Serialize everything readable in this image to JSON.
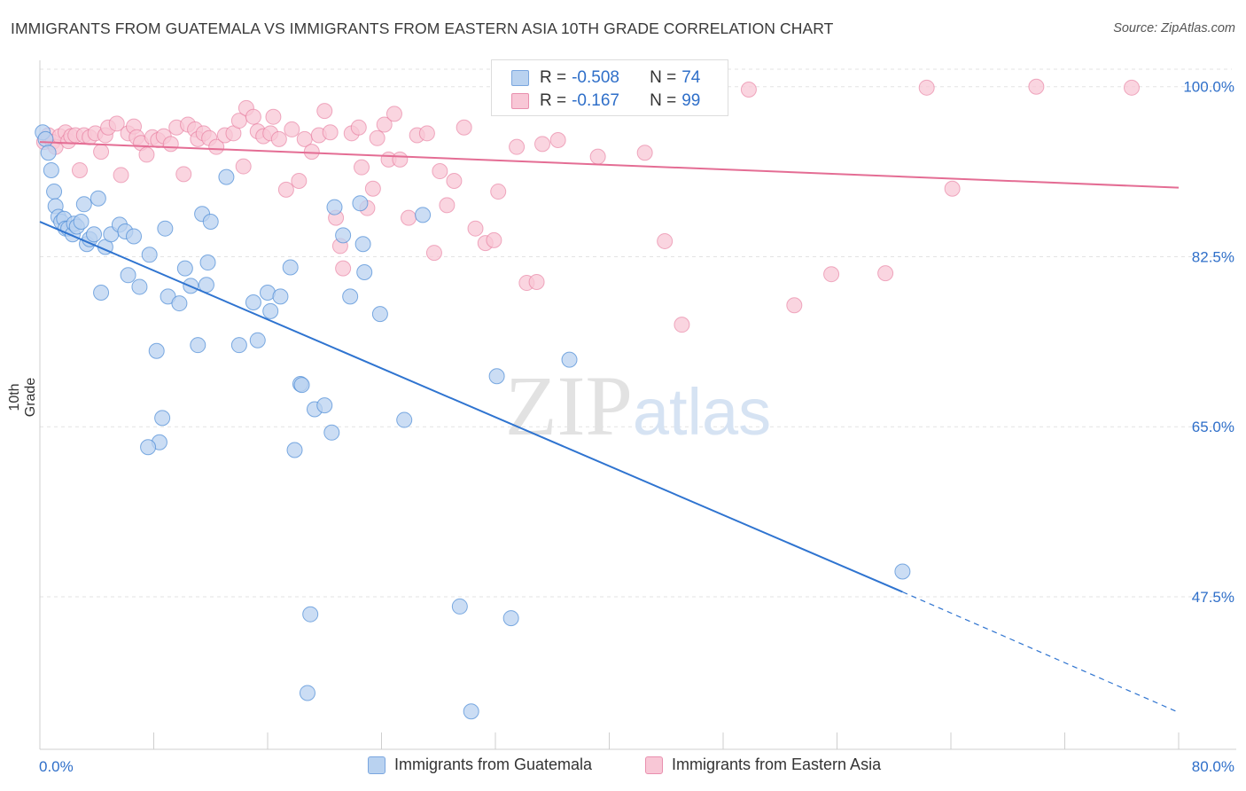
{
  "title": "IMMIGRANTS FROM GUATEMALA VS IMMIGRANTS FROM EASTERN ASIA 10TH GRADE CORRELATION CHART",
  "source": "Source: ZipAtlas.com",
  "watermark": "ZIPatlas",
  "legend_top": {
    "rows": [
      {
        "r_label": "R =",
        "r_value": "-0.508",
        "n_label": "N =",
        "n_value": "74"
      },
      {
        "r_label": "R =",
        "r_value": "-0.167",
        "n_label": "N =",
        "n_value": "99"
      }
    ]
  },
  "legend_bottom": [
    "Immigrants from Guatemala",
    "Immigrants from Eastern Asia"
  ],
  "colors": {
    "blue": "#4a8ad6",
    "blue_fill": "#b9d2f0",
    "pink": "#e46d94",
    "pink_fill": "#f8c7d6",
    "grid": "#e3e3e3",
    "tick_label": "#2f6fc9"
  },
  "chart_data": {
    "type": "scatter",
    "title": "IMMIGRANTS FROM GUATEMALA VS IMMIGRANTS FROM EASTERN ASIA 10TH GRADE CORRELATION CHART",
    "xlabel": "",
    "ylabel": "10th Grade",
    "xlim": [
      0,
      80
    ],
    "ylim": [
      31.8,
      101.8
    ],
    "x_tick_labels": [
      "0.0%",
      "80.0%"
    ],
    "y_ticks": [
      100.0,
      82.5,
      65.0,
      47.5
    ],
    "y_tick_labels": [
      "100.0%",
      "82.5%",
      "65.0%",
      "47.5%"
    ],
    "grid": true,
    "legend_position": "top-center",
    "series": [
      {
        "name": "Immigrants from Guatemala",
        "color": "#4a8ad6",
        "points": [
          [
            0.2,
            95.3
          ],
          [
            0.4,
            94.6
          ],
          [
            0.6,
            93.2
          ],
          [
            0.8,
            91.4
          ],
          [
            1.0,
            89.2
          ],
          [
            1.1,
            87.7
          ],
          [
            1.3,
            86.6
          ],
          [
            1.5,
            86.1
          ],
          [
            1.7,
            86.4
          ],
          [
            1.8,
            85.4
          ],
          [
            2.0,
            85.4
          ],
          [
            2.3,
            84.8
          ],
          [
            2.4,
            85.9
          ],
          [
            2.6,
            85.6
          ],
          [
            2.9,
            86.1
          ],
          [
            3.1,
            87.9
          ],
          [
            3.3,
            83.8
          ],
          [
            3.5,
            84.3
          ],
          [
            3.8,
            84.8
          ],
          [
            4.1,
            88.5
          ],
          [
            4.6,
            83.5
          ],
          [
            5.0,
            84.8
          ],
          [
            5.6,
            85.8
          ],
          [
            6.0,
            85.1
          ],
          [
            6.6,
            84.6
          ],
          [
            4.3,
            78.8
          ],
          [
            6.2,
            80.6
          ],
          [
            7.0,
            79.4
          ],
          [
            7.7,
            82.7
          ],
          [
            8.8,
            85.4
          ],
          [
            9.0,
            78.4
          ],
          [
            8.2,
            72.8
          ],
          [
            8.6,
            65.9
          ],
          [
            8.4,
            63.4
          ],
          [
            7.6,
            62.9
          ],
          [
            9.8,
            77.7
          ],
          [
            10.2,
            81.3
          ],
          [
            10.6,
            79.5
          ],
          [
            11.1,
            73.4
          ],
          [
            11.4,
            86.9
          ],
          [
            12.0,
            86.1
          ],
          [
            11.8,
            81.9
          ],
          [
            11.7,
            79.6
          ],
          [
            13.1,
            90.7
          ],
          [
            14.0,
            73.4
          ],
          [
            15.0,
            77.8
          ],
          [
            15.3,
            73.9
          ],
          [
            16.0,
            78.8
          ],
          [
            16.2,
            76.9
          ],
          [
            16.9,
            78.4
          ],
          [
            17.6,
            81.4
          ],
          [
            18.3,
            69.4
          ],
          [
            18.4,
            69.3
          ],
          [
            17.9,
            62.6
          ],
          [
            19.3,
            66.8
          ],
          [
            20.0,
            67.2
          ],
          [
            20.5,
            64.4
          ],
          [
            19.0,
            45.7
          ],
          [
            18.8,
            37.6
          ],
          [
            20.7,
            87.6
          ],
          [
            21.3,
            84.7
          ],
          [
            21.8,
            78.4
          ],
          [
            22.7,
            83.8
          ],
          [
            22.5,
            88.0
          ],
          [
            22.8,
            80.9
          ],
          [
            23.9,
            76.6
          ],
          [
            25.6,
            65.7
          ],
          [
            26.9,
            86.8
          ],
          [
            29.5,
            46.5
          ],
          [
            30.3,
            35.7
          ],
          [
            32.1,
            70.2
          ],
          [
            33.1,
            45.3
          ],
          [
            37.2,
            71.9
          ],
          [
            60.6,
            50.1
          ]
        ],
        "trend": {
          "x0": 0,
          "y0": 86.1,
          "x1": 60.6,
          "y1": 48.0,
          "dash_to_x": 80,
          "dash_to_y": 35.6
        }
      },
      {
        "name": "Immigrants from Eastern Asia",
        "color": "#e46d94",
        "points": [
          [
            0.3,
            94.3
          ],
          [
            0.6,
            95.0
          ],
          [
            0.9,
            94.3
          ],
          [
            1.1,
            93.8
          ],
          [
            1.4,
            94.9
          ],
          [
            1.8,
            95.3
          ],
          [
            2.0,
            94.4
          ],
          [
            2.2,
            94.9
          ],
          [
            2.5,
            95.0
          ],
          [
            2.8,
            91.4
          ],
          [
            3.1,
            95.0
          ],
          [
            3.5,
            94.8
          ],
          [
            3.9,
            95.2
          ],
          [
            4.3,
            93.3
          ],
          [
            4.6,
            95.0
          ],
          [
            4.8,
            95.8
          ],
          [
            5.4,
            96.2
          ],
          [
            5.7,
            90.9
          ],
          [
            6.2,
            95.2
          ],
          [
            6.6,
            95.9
          ],
          [
            6.8,
            94.8
          ],
          [
            7.1,
            94.2
          ],
          [
            7.5,
            93.0
          ],
          [
            7.9,
            94.8
          ],
          [
            8.3,
            94.5
          ],
          [
            8.7,
            94.9
          ],
          [
            9.2,
            94.1
          ],
          [
            9.6,
            95.8
          ],
          [
            10.1,
            91.0
          ],
          [
            10.4,
            96.1
          ],
          [
            10.9,
            95.6
          ],
          [
            11.1,
            94.6
          ],
          [
            11.5,
            95.2
          ],
          [
            11.9,
            94.7
          ],
          [
            12.4,
            93.8
          ],
          [
            13.0,
            95.0
          ],
          [
            13.6,
            95.2
          ],
          [
            14.0,
            96.5
          ],
          [
            14.3,
            91.8
          ],
          [
            14.5,
            97.8
          ],
          [
            15.0,
            96.9
          ],
          [
            15.3,
            95.4
          ],
          [
            15.7,
            94.9
          ],
          [
            16.2,
            95.2
          ],
          [
            16.4,
            96.9
          ],
          [
            16.8,
            94.6
          ],
          [
            17.3,
            89.4
          ],
          [
            17.7,
            95.6
          ],
          [
            18.2,
            90.3
          ],
          [
            18.6,
            94.6
          ],
          [
            19.1,
            93.3
          ],
          [
            19.6,
            95.0
          ],
          [
            20.0,
            97.5
          ],
          [
            20.4,
            95.3
          ],
          [
            20.8,
            86.5
          ],
          [
            21.1,
            83.6
          ],
          [
            21.3,
            81.3
          ],
          [
            21.9,
            95.2
          ],
          [
            22.4,
            95.8
          ],
          [
            22.6,
            91.7
          ],
          [
            23.0,
            87.5
          ],
          [
            23.4,
            89.5
          ],
          [
            23.7,
            94.7
          ],
          [
            24.2,
            96.1
          ],
          [
            24.5,
            92.5
          ],
          [
            24.9,
            97.2
          ],
          [
            25.3,
            92.5
          ],
          [
            25.9,
            86.5
          ],
          [
            26.5,
            95.0
          ],
          [
            27.2,
            95.2
          ],
          [
            27.7,
            82.9
          ],
          [
            28.1,
            91.3
          ],
          [
            28.6,
            87.8
          ],
          [
            29.1,
            90.3
          ],
          [
            29.8,
            95.8
          ],
          [
            30.6,
            85.4
          ],
          [
            31.3,
            83.9
          ],
          [
            31.9,
            84.2
          ],
          [
            32.2,
            89.2
          ],
          [
            33.5,
            93.8
          ],
          [
            34.2,
            79.8
          ],
          [
            34.9,
            79.9
          ],
          [
            35.3,
            94.1
          ],
          [
            36.4,
            94.5
          ],
          [
            37.6,
            99.9
          ],
          [
            39.2,
            92.8
          ],
          [
            41.0,
            99.9
          ],
          [
            42.5,
            93.2
          ],
          [
            43.9,
            84.1
          ],
          [
            45.1,
            75.5
          ],
          [
            46.7,
            100.0
          ],
          [
            49.8,
            99.7
          ],
          [
            53.0,
            77.5
          ],
          [
            55.6,
            80.7
          ],
          [
            59.4,
            80.8
          ],
          [
            62.3,
            99.9
          ],
          [
            64.1,
            89.5
          ],
          [
            70.0,
            100.0
          ],
          [
            76.7,
            99.9
          ]
        ],
        "trend": {
          "x0": 0,
          "y0": 94.3,
          "x1": 80,
          "y1": 89.6
        }
      }
    ]
  }
}
